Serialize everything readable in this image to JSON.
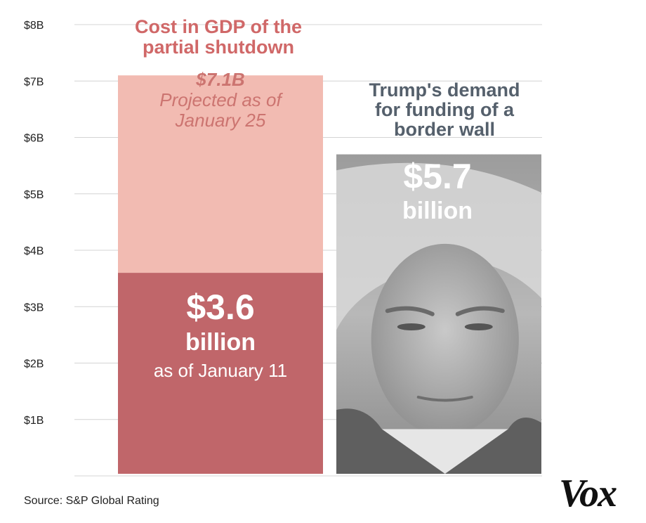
{
  "colors": {
    "current": "#c0666a",
    "projected": "#f2bbb2",
    "left_title": "#d06868",
    "projected_text": "#cc7470",
    "right_title": "#55606c",
    "photo_bg": "#a8a8a8"
  },
  "chart_data": {
    "type": "bar",
    "ylim": [
      0,
      8
    ],
    "yticks": [
      1,
      2,
      3,
      4,
      5,
      6,
      7,
      8
    ],
    "ytick_labels": [
      "$1B",
      "$2B",
      "$3B",
      "$4B",
      "$5B",
      "$6B",
      "$7B",
      "$8B"
    ],
    "ylabel": "",
    "xlabel": "",
    "bars": [
      {
        "name": "shutdown",
        "title_lines": [
          "Cost in GDP of the",
          "partial shutdown"
        ],
        "segments": [
          {
            "name": "as_of_jan_11",
            "value": 3.6,
            "label_lines": [
              "$3.6",
              "billion",
              "as of January 11"
            ]
          },
          {
            "name": "projected_jan_25",
            "value": 7.1,
            "label_lines": [
              "$7.1B",
              "Projected as of",
              "January 25"
            ]
          }
        ]
      },
      {
        "name": "border_wall",
        "title_lines": [
          "Trump's demand",
          "for funding of a",
          "border wall"
        ],
        "value": 5.7,
        "label_lines": [
          "$5.7",
          "billion"
        ],
        "image": "trump-portrait"
      }
    ]
  },
  "footer": {
    "source": "Source: S&P Global Rating",
    "logo": "Vox"
  }
}
